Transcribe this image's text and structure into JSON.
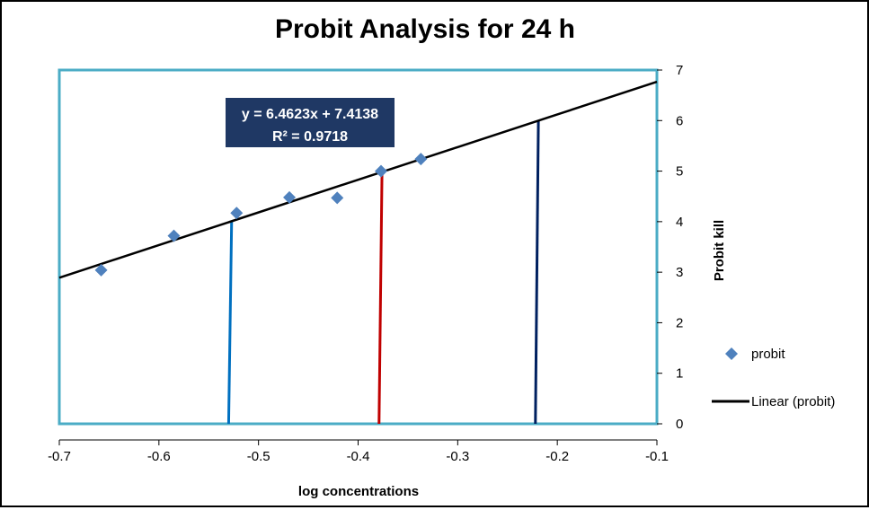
{
  "chart_data": {
    "type": "scatter",
    "title": "Probit Analysis for 24 h",
    "xlabel": "log concentrations",
    "ylabel": "Probit kill",
    "xlim": [
      -0.7,
      -0.1
    ],
    "ylim": [
      0,
      7
    ],
    "x_ticks": [
      "-0.7",
      "-0.6",
      "-0.5",
      "-0.4",
      "-0.3",
      "-0.2",
      "-0.1"
    ],
    "y_ticks": [
      "0",
      "1",
      "2",
      "3",
      "4",
      "5",
      "6",
      "7"
    ],
    "y_axis_side": "right",
    "grid": false,
    "series": [
      {
        "name": "probit",
        "marker": "diamond",
        "color": "#4f81bd",
        "x": [
          -0.658,
          -0.585,
          -0.522,
          -0.469,
          -0.421,
          -0.377,
          -0.337
        ],
        "y": [
          3.04,
          3.72,
          4.17,
          4.48,
          4.47,
          5.0,
          5.24
        ]
      },
      {
        "name": "Linear (probit)",
        "type": "line",
        "color": "#000000",
        "slope": 6.4623,
        "intercept": 7.4138
      }
    ],
    "reference_lines": [
      {
        "x1": -0.53,
        "y1": 0,
        "x2": -0.527,
        "y2": 4.0,
        "color": "#0070c0"
      },
      {
        "x1": -0.379,
        "y1": 0,
        "x2": -0.376,
        "y2": 5.0,
        "color": "#c00000"
      },
      {
        "x1": -0.222,
        "y1": 0,
        "x2": -0.219,
        "y2": 6.0,
        "color": "#002060"
      }
    ],
    "equation": {
      "line1": "y = 6.4623x + 7.4138",
      "line2": "R² = 0.9718",
      "bg_color": "#1f3864"
    },
    "plot_border_color": "#4bacc6",
    "legend": {
      "position": "right",
      "items": [
        "probit",
        "Linear (probit)"
      ]
    }
  }
}
